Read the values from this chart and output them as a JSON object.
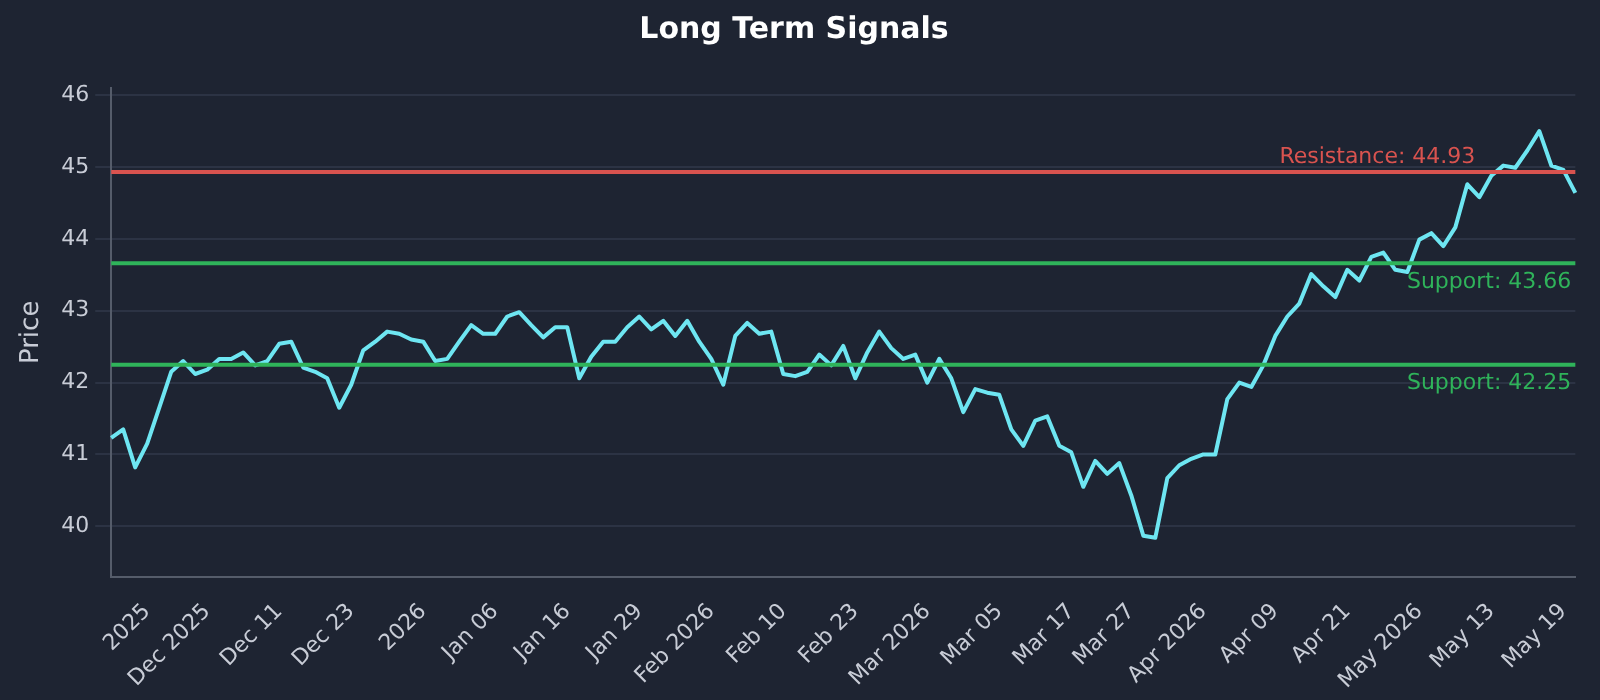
{
  "chart_data": {
    "type": "line",
    "title": "Long Term Signals",
    "ylabel": "Price",
    "categories": [
      null,
      null,
      null,
      "2025",
      null,
      null,
      null,
      null,
      "Dec 2025",
      null,
      null,
      null,
      null,
      null,
      "Dec 11",
      null,
      null,
      null,
      null,
      null,
      "Dec 23",
      null,
      null,
      null,
      null,
      null,
      "2026",
      null,
      null,
      null,
      null,
      null,
      "Jan 06",
      null,
      null,
      null,
      null,
      null,
      "Jan 16",
      null,
      null,
      null,
      null,
      null,
      "Jan 29",
      null,
      null,
      null,
      null,
      null,
      "Feb 2026",
      null,
      null,
      null,
      null,
      null,
      "Feb 10",
      null,
      null,
      null,
      null,
      null,
      "Feb 23",
      null,
      null,
      null,
      null,
      null,
      "Mar 2026",
      null,
      null,
      null,
      null,
      null,
      "Mar 05",
      null,
      null,
      null,
      null,
      null,
      "Mar 17",
      null,
      null,
      null,
      null,
      "Mar 27",
      null,
      null,
      null,
      null,
      null,
      "Apr 2026",
      null,
      null,
      null,
      null,
      null,
      "Apr 09",
      null,
      null,
      null,
      null,
      null,
      "Apr 21",
      null,
      null,
      null,
      null,
      null,
      "May 2026",
      null,
      null,
      null,
      null,
      null,
      "May 13",
      null,
      null,
      null,
      null,
      null,
      "May 19",
      null
    ],
    "series": [
      {
        "color": "#6ee6f2",
        "values": [
          41.23,
          41.35,
          40.82,
          41.15,
          41.65,
          42.15,
          42.3,
          42.12,
          42.18,
          42.33,
          42.33,
          42.42,
          42.24,
          42.3,
          42.54,
          42.57,
          42.21,
          42.15,
          42.06,
          41.65,
          41.97,
          42.45,
          42.57,
          42.71,
          42.68,
          42.6,
          42.57,
          42.3,
          42.33,
          42.57,
          42.8,
          42.68,
          42.68,
          42.92,
          42.98,
          42.8,
          42.63,
          42.77,
          42.77,
          42.06,
          42.36,
          42.57,
          42.57,
          42.77,
          42.92,
          42.74,
          42.86,
          42.65,
          42.86,
          42.57,
          42.33,
          41.97,
          42.65,
          42.83,
          42.68,
          42.71,
          42.12,
          42.09,
          42.15,
          42.39,
          42.24,
          42.51,
          42.06,
          42.42,
          42.71,
          42.48,
          42.33,
          42.39,
          42.0,
          42.33,
          42.06,
          41.59,
          41.91,
          41.86,
          41.83,
          41.35,
          41.12,
          41.47,
          41.53,
          41.12,
          41.03,
          40.55,
          40.91,
          40.73,
          40.88,
          40.43,
          39.87,
          39.84,
          40.67,
          40.85,
          40.94,
          41.0,
          41.0,
          41.77,
          42.0,
          41.94,
          42.24,
          42.65,
          42.92,
          43.1,
          43.51,
          43.34,
          43.19,
          43.57,
          43.42,
          43.75,
          43.81,
          43.57,
          43.54,
          43.99,
          44.08,
          43.9,
          44.16,
          44.76,
          44.58,
          44.88,
          45.02,
          44.99,
          45.23,
          45.5,
          45.02,
          44.96,
          44.64
        ]
      }
    ],
    "ylim": [
      39.3,
      46.1
    ],
    "yticks": [
      40,
      41,
      42,
      43,
      44,
      45,
      46
    ],
    "grid": "y",
    "legend": false,
    "marker": "none",
    "line_style": "solid",
    "ref_lines": [
      {
        "axis": "y",
        "value": 44.93,
        "label": "Resistance: 44.93",
        "color": "#d9534f"
      },
      {
        "axis": "y",
        "value": 43.66,
        "label": "Support: 43.66",
        "color": "#2fb35a"
      },
      {
        "axis": "y",
        "value": 42.25,
        "label": "Support: 42.25",
        "color": "#2fb35a"
      }
    ]
  }
}
